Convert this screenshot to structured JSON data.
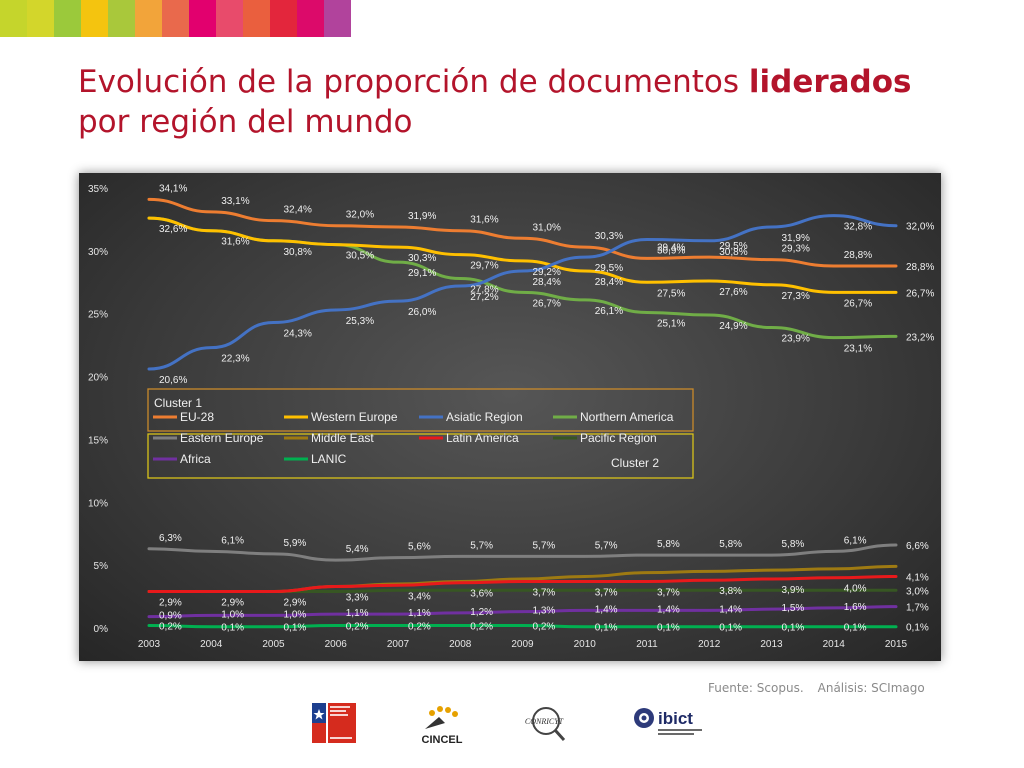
{
  "slide": {
    "title_part1": "Evolución de la proporción de documentos ",
    "title_highlight": "liderados",
    "title_part2": "por región del mundo",
    "source_label": "Fuente: Scopus.",
    "analysis_label": "Análisis: SCImago",
    "stripe_colors": [
      "#c5d52c",
      "#d3d62b",
      "#9bc93b",
      "#f4c40f",
      "#a9c83b",
      "#f2a43a",
      "#e9694c",
      "#e2006e",
      "#e84b6b",
      "#ea5f3e",
      "#e3263c",
      "#dc0a6a",
      "#b1439c"
    ],
    "logos": [
      {
        "icon": "chile-ministry-logo-icon",
        "text": ""
      },
      {
        "icon": "cincel-logo-icon",
        "text": "CINCEL"
      },
      {
        "icon": "conricyt-logo-icon",
        "text": "CONRICYT"
      },
      {
        "icon": "ibict-logo-icon",
        "text": "ibict"
      }
    ]
  },
  "chart_data": {
    "type": "line",
    "title": "",
    "xlabel": "",
    "ylabel": "",
    "x": [
      2003,
      2004,
      2005,
      2006,
      2007,
      2008,
      2009,
      2010,
      2011,
      2012,
      2013,
      2014,
      2015
    ],
    "ylim": [
      0,
      35
    ],
    "yticks": [
      "0%",
      "5%",
      "10%",
      "15%",
      "20%",
      "25%",
      "30%",
      "35%"
    ],
    "grid": false,
    "series": [
      {
        "name": "EU-28",
        "color": "#ed7d31",
        "values": [
          34.1,
          33.1,
          32.4,
          32.0,
          31.9,
          31.6,
          31.0,
          30.3,
          29.4,
          29.5,
          29.3,
          28.8,
          28.8
        ],
        "labels": [
          "34,1%",
          "33,1%",
          "32,4%",
          "32,0%",
          "31,9%",
          "31,6%",
          "31,0%",
          "30,3%",
          "29,4%",
          "29,5%",
          "29,3%",
          "28,8%",
          "28,8%"
        ]
      },
      {
        "name": "Western Europe",
        "color": "#ffc000",
        "values": [
          32.6,
          31.6,
          30.8,
          30.5,
          30.3,
          29.7,
          29.2,
          28.4,
          27.5,
          27.6,
          27.3,
          26.7,
          26.7
        ],
        "labels": [
          "32,6%",
          "31,6%",
          "30,8%",
          "30,5%",
          "30,3%",
          "29,7%",
          "29,2%",
          "28,4%",
          "27,5%",
          "27,6%",
          "27,3%",
          "26,7%",
          "26,7%"
        ]
      },
      {
        "name": "Asiatic Region",
        "color": "#4472c4",
        "values": [
          20.6,
          22.3,
          24.3,
          25.3,
          26.0,
          27.2,
          28.4,
          29.5,
          30.9,
          30.8,
          31.9,
          32.8,
          32.0
        ],
        "labels": [
          "20,6%",
          "22,3%",
          "24,3%",
          "25,3%",
          "26,0%",
          "27,2%",
          "28,4%",
          "29,5%",
          "30,9%",
          "30,8%",
          "31,9%",
          "32,8%",
          "32,0%"
        ]
      },
      {
        "name": "Northern America",
        "color": "#70ad47",
        "values": [
          32.6,
          31.6,
          30.8,
          30.5,
          29.1,
          27.8,
          26.7,
          26.1,
          25.1,
          24.9,
          23.9,
          23.1,
          23.2
        ],
        "labels": [
          "",
          "",
          "",
          "",
          "29,1%",
          "27,8%",
          "26,7%",
          "26,1%",
          "25,1%",
          "24,9%",
          "23,9%",
          "23,1%",
          "23,2%"
        ]
      },
      {
        "name": "Eastern Europe",
        "color": "#7f7f7f",
        "values": [
          6.3,
          6.1,
          5.9,
          5.4,
          5.6,
          5.7,
          5.7,
          5.7,
          5.8,
          5.8,
          5.8,
          6.1,
          6.6
        ],
        "labels": [
          "6,3%",
          "6,1%",
          "5,9%",
          "5,4%",
          "5,6%",
          "5,7%",
          "5,7%",
          "5,7%",
          "5,8%",
          "5,8%",
          "5,8%",
          "6,1%",
          "6,6%"
        ]
      },
      {
        "name": "Middle East",
        "color": "#9e7a12",
        "values": [
          2.9,
          2.9,
          2.9,
          3.3,
          3.5,
          3.7,
          3.9,
          4.1,
          4.4,
          4.5,
          4.6,
          4.7,
          4.9
        ],
        "labels": [
          "",
          "",
          "",
          "",
          "",
          "",
          "",
          "",
          "",
          "",
          "",
          "",
          ""
        ]
      },
      {
        "name": "Latin America",
        "color": "#e8191b",
        "values": [
          2.9,
          2.9,
          2.9,
          3.3,
          3.4,
          3.6,
          3.7,
          3.7,
          3.7,
          3.8,
          3.9,
          4.0,
          4.1
        ],
        "labels": [
          "2,9%",
          "2,9%",
          "2,9%",
          "3,3%",
          "3,4%",
          "3,6%",
          "3,7%",
          "3,7%",
          "3,7%",
          "3,8%",
          "3,9%",
          "4,0%",
          "4,1%"
        ]
      },
      {
        "name": "Pacific Region",
        "color": "#375623",
        "values": [
          2.9,
          2.9,
          2.9,
          2.9,
          3.0,
          3.0,
          3.0,
          3.0,
          3.0,
          3.0,
          3.0,
          3.0,
          3.0
        ],
        "labels": [
          "",
          "",
          "",
          "",
          "",
          "",
          "",
          "",
          "",
          "",
          "",
          "",
          "3,0%"
        ]
      },
      {
        "name": "Africa",
        "color": "#7030a0",
        "values": [
          0.9,
          1.0,
          1.0,
          1.1,
          1.1,
          1.2,
          1.3,
          1.4,
          1.4,
          1.4,
          1.5,
          1.6,
          1.7
        ],
        "labels": [
          "0,9%",
          "1,0%",
          "1,0%",
          "1,1%",
          "1,1%",
          "1,2%",
          "1,3%",
          "1,4%",
          "1,4%",
          "1,4%",
          "1,5%",
          "1,6%",
          "1,7%"
        ]
      },
      {
        "name": "LANIC",
        "color": "#00b050",
        "values": [
          0.2,
          0.1,
          0.1,
          0.2,
          0.2,
          0.2,
          0.2,
          0.1,
          0.1,
          0.1,
          0.1,
          0.1,
          0.1
        ],
        "labels": [
          "0,2%",
          "0,1%",
          "0,1%",
          "0,2%",
          "0,2%",
          "0,2%",
          "0,2%",
          "0,1%",
          "0,1%",
          "0,1%",
          "0,1%",
          "0,1%",
          "0,1%"
        ]
      }
    ],
    "legend": {
      "placement": "center-left",
      "cluster1_label": "Cluster 1",
      "cluster2_label": "Cluster 2",
      "cluster1_color": "#c98a2b",
      "cluster2_color": "#d8c21a"
    }
  }
}
